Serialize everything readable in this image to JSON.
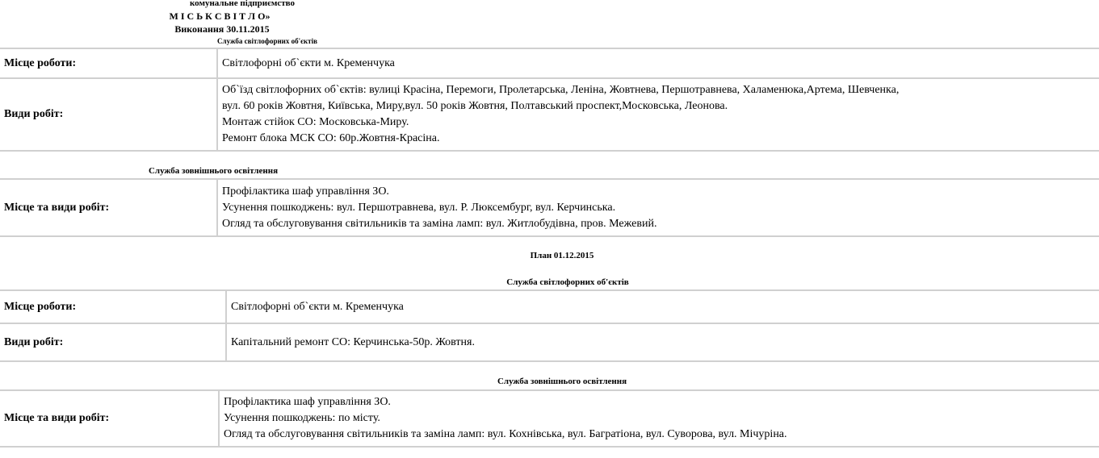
{
  "header": {
    "org": "комунальне підприємство",
    "name": "М І С Ь К С В І Т Л О»",
    "done": "Виконання 30.11.2015",
    "service1": "Служба світлофорних об'єктів"
  },
  "t1": {
    "place_label": "Місце роботи:",
    "place": "Світлофорні об`єкти м. Кременчука",
    "works_label": "Види робіт:",
    "works": [
      "Об`їзд світлофорних об`єктів: вулиці Красіна, Перемоги, Пролетарська, Леніна, Жовтнева, Першотравнева, Халаменюка,Артема, Шевченка,",
      "вул. 60 років Жовтня, Київська, Миру,вул. 50 років Жовтня, Полтавський проспект,Московська, Леонова.",
      "Монтаж стійок СО: Московська-Миру.",
      "Ремонт блока МСК СО: 60р.Жовтня-Красіна."
    ]
  },
  "service2": "Служба зовнішнього освітлення",
  "t2": {
    "label": "Місце та види робіт:",
    "works": [
      "Профілактика шаф управління ЗО.",
      "Усунення пошкоджень: вул. Першотравнева, вул. Р. Люксембург, вул. Керчинська.",
      "Огляд та обслуговування світильників та заміна ламп: вул. Житлобудівна,  пров. Межевий."
    ]
  },
  "plan": "План 01.12.2015",
  "service3": "Служба світлофорних об'єктів",
  "t3": {
    "place_label": "Місце роботи:",
    "place": "Світлофорні об`єкти м. Кременчука",
    "works_label": "Види робіт:",
    "works": "Капітальний ремонт СО: Керчинська-50р. Жовтня."
  },
  "service4": "Служба зовнішнього освітлення",
  "t4": {
    "label": "Місце та види робіт:",
    "works": [
      "Профілактика шаф управління ЗО.",
      "Усунення пошкоджень: по місту.",
      "Огляд та обслуговування світильників та заміна ламп: вул. Кохнівська, вул. Багратіона, вул. Суворова, вул. Мічуріна."
    ]
  }
}
